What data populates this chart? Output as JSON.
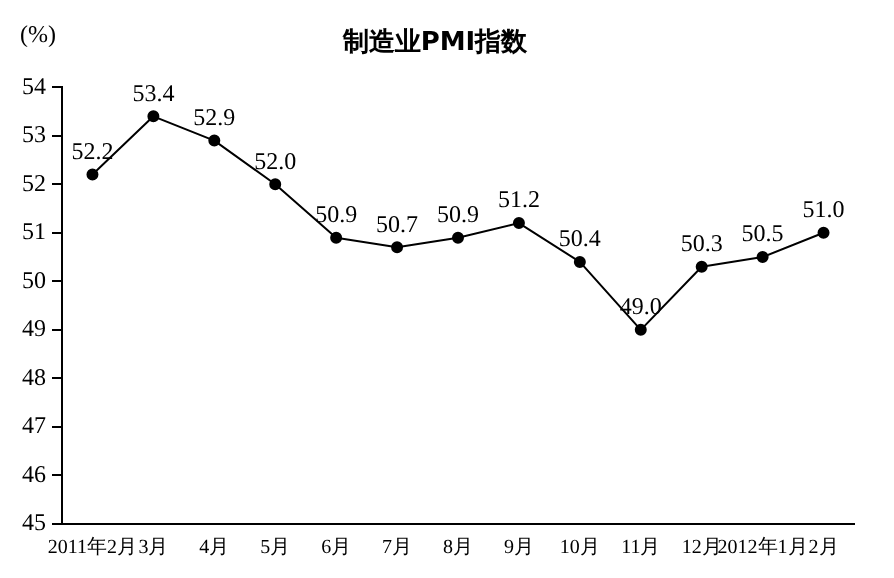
{
  "chart_data": {
    "type": "line",
    "title": "制造业PMI指数",
    "ylabel": "(%)",
    "categories": [
      "2011年2月",
      "3月",
      "4月",
      "5月",
      "6月",
      "7月",
      "8月",
      "9月",
      "10月",
      "11月",
      "12月",
      "2012年1月",
      "2月"
    ],
    "series": [
      {
        "color": "#000000",
        "values": [
          52.2,
          53.4,
          52.9,
          52.0,
          50.9,
          50.7,
          50.9,
          51.2,
          50.4,
          49.0,
          50.3,
          50.5,
          51.0
        ],
        "value_labels": [
          "52.2",
          "53.4",
          "52.9",
          "52.0",
          "50.9",
          "50.7",
          "50.9",
          "51.2",
          "50.4",
          "49.0",
          "50.3",
          "50.5",
          "51.0"
        ]
      }
    ],
    "ylim": [
      45,
      54
    ],
    "yticks": [
      45,
      46,
      47,
      48,
      49,
      50,
      51,
      52,
      53,
      54
    ],
    "grid": false,
    "legend": false,
    "marker": "circle",
    "line_style": "solid"
  }
}
